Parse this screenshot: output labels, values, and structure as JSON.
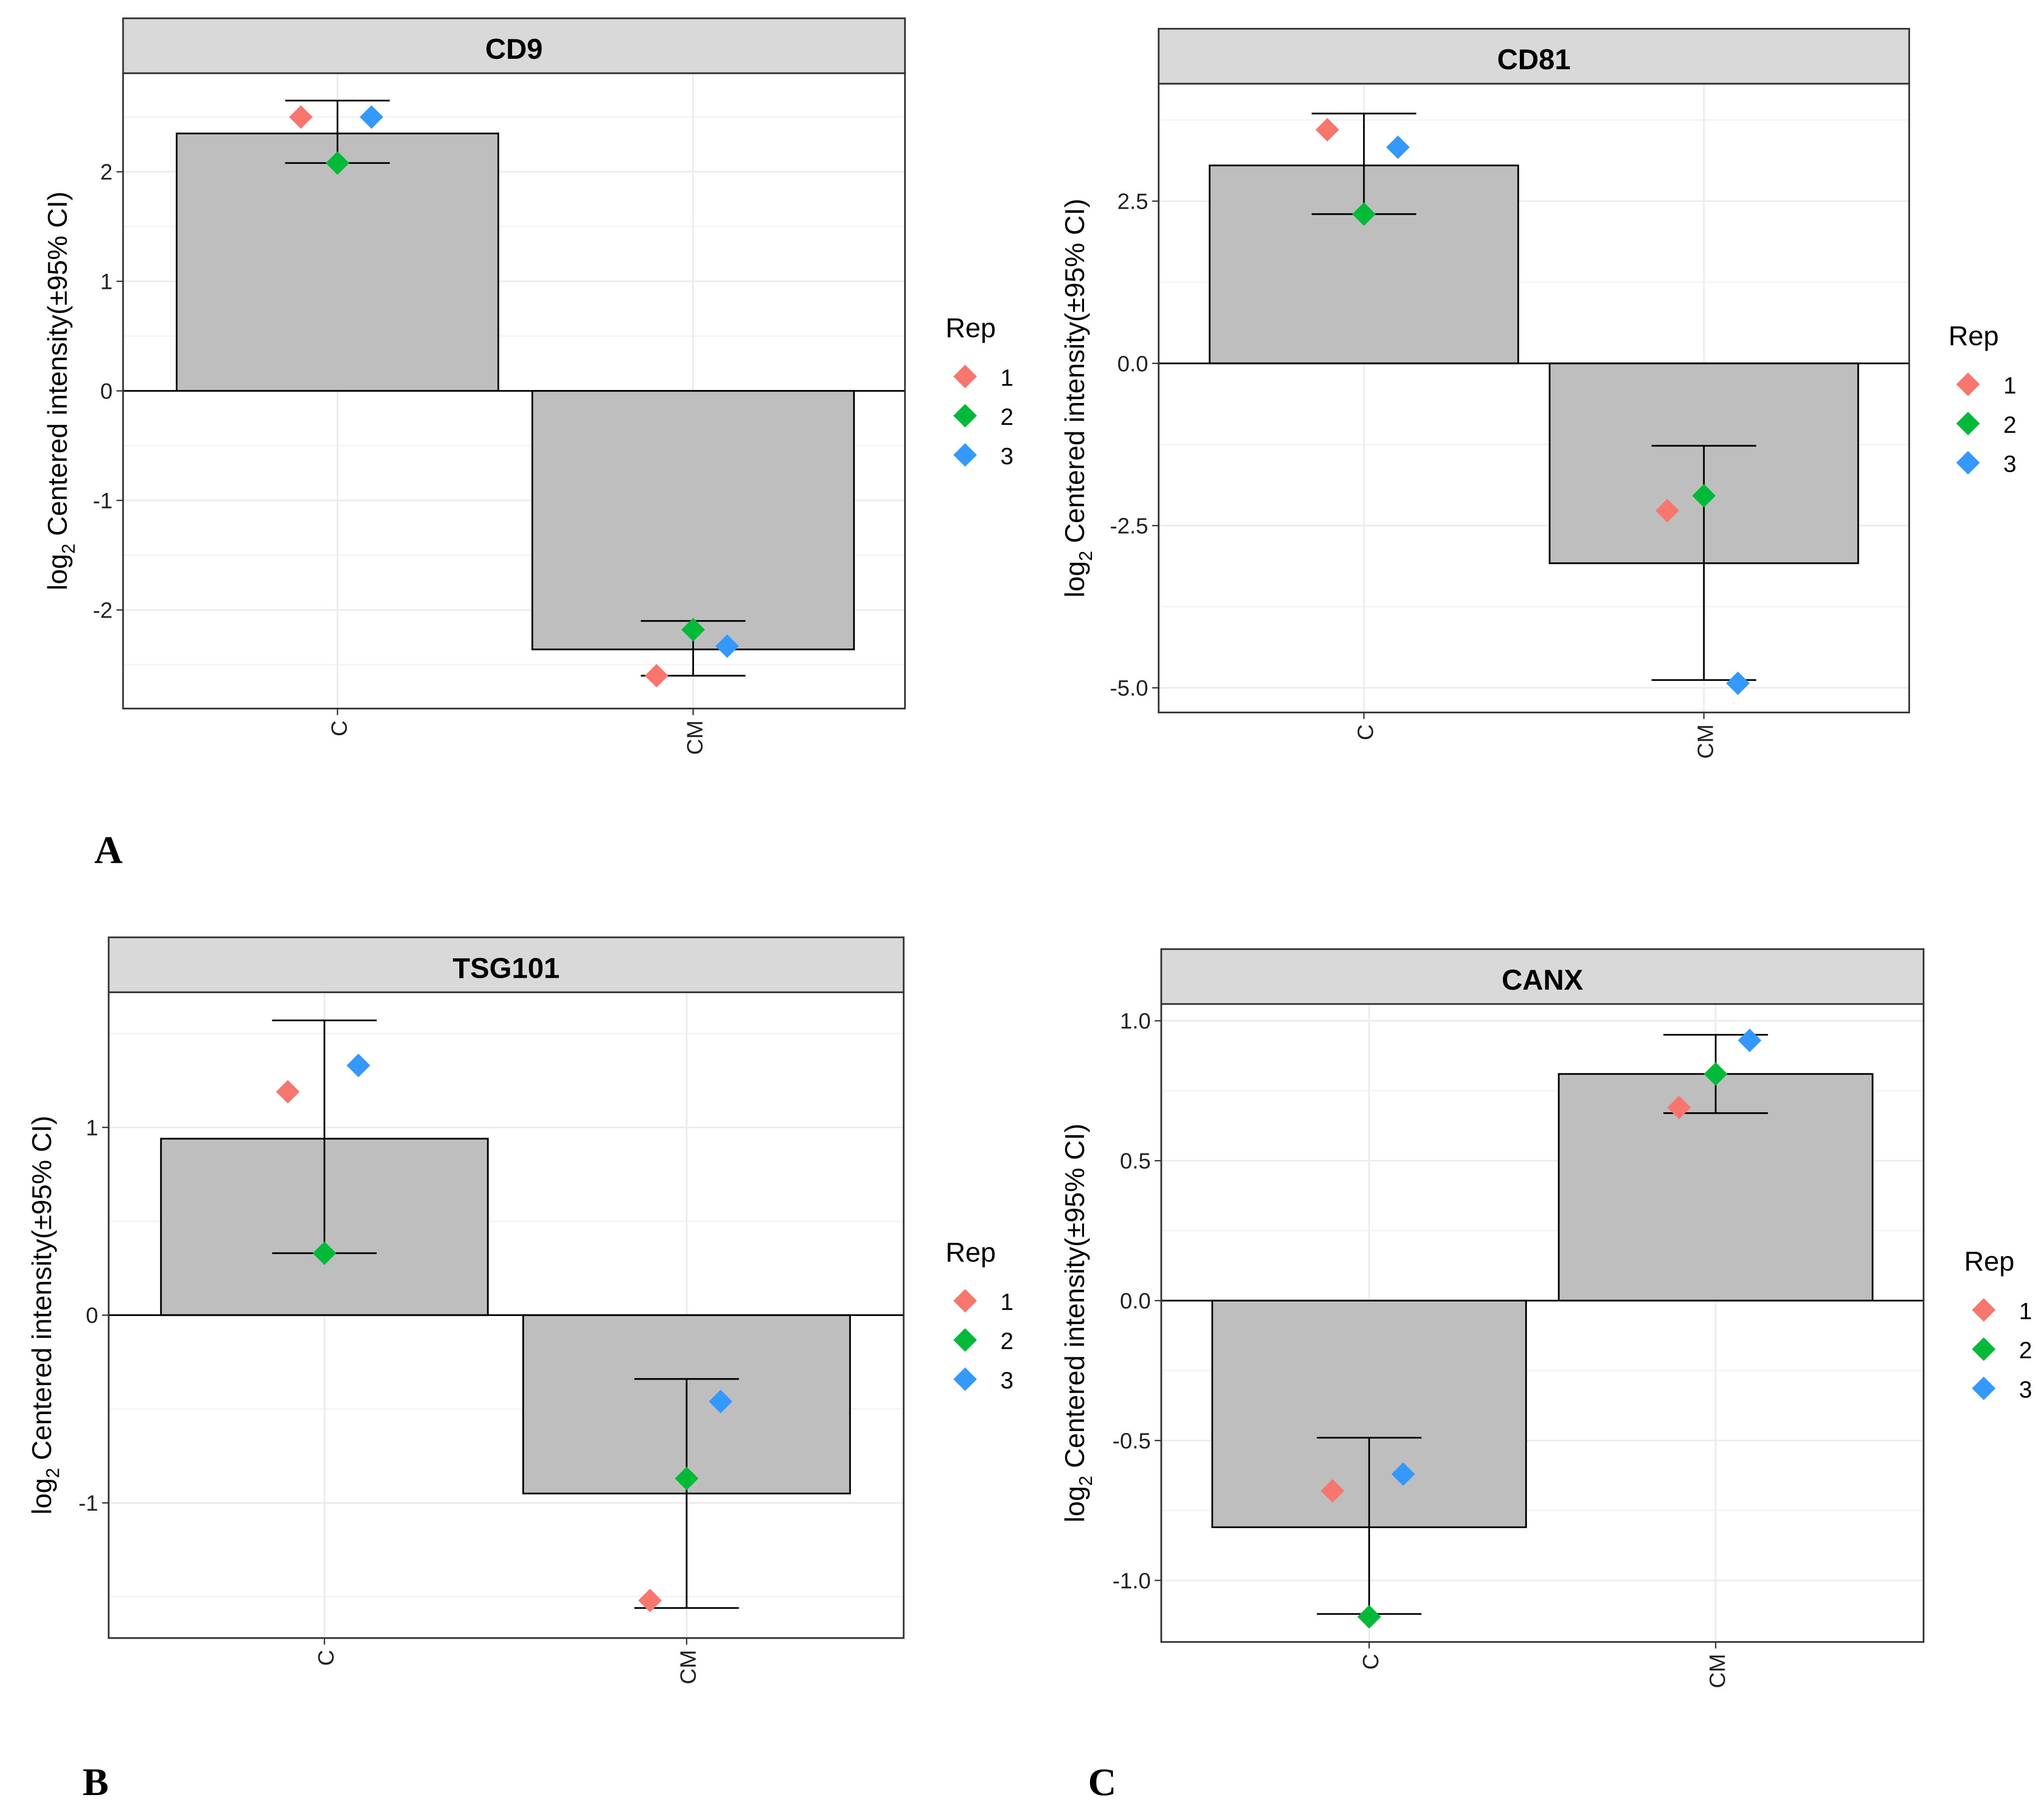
{
  "panel_labels": [
    "A",
    "B",
    "C"
  ],
  "chart_data": [
    {
      "type": "bar",
      "title": "CD9",
      "ylabel": "log2 Centered intensity(±95% CI)",
      "categories": [
        "C",
        "CM"
      ],
      "values": [
        2.35,
        -2.36
      ],
      "ylim": [
        -2.9,
        2.9
      ],
      "yticks": [
        -2,
        -1,
        0,
        1,
        2
      ],
      "ytick_labels": [
        "-2",
        "-1",
        "0",
        "1",
        "2"
      ],
      "errors": [
        [
          2.08,
          2.65
        ],
        [
          -2.6,
          -2.1
        ]
      ],
      "points": [
        {
          "rep": "1",
          "values": [
            2.5,
            -2.6
          ]
        },
        {
          "rep": "2",
          "values": [
            2.08,
            -2.18
          ]
        },
        {
          "rep": "3",
          "values": [
            2.5,
            -2.33
          ]
        }
      ],
      "legend": {
        "title": "Rep",
        "entries": [
          "1",
          "2",
          "3"
        ],
        "placement": "right"
      }
    },
    {
      "type": "bar",
      "title": "CD81",
      "ylabel": "log2 Centered intensity(±95% CI)",
      "categories": [
        "C",
        "CM"
      ],
      "values": [
        3.05,
        -3.08
      ],
      "ylim": [
        -5.38,
        4.31
      ],
      "yticks": [
        -5,
        -2.5,
        0,
        2.5
      ],
      "ytick_labels": [
        "-5.0",
        "-2.5",
        "0.0",
        "2.5"
      ],
      "errors": [
        [
          2.3,
          3.85
        ],
        [
          -4.88,
          -1.27
        ]
      ],
      "points": [
        {
          "rep": "1",
          "values": [
            3.6,
            -2.27
          ]
        },
        {
          "rep": "2",
          "values": [
            2.3,
            -2.04
          ]
        },
        {
          "rep": "3",
          "values": [
            3.33,
            -4.93
          ]
        }
      ],
      "legend": {
        "title": "Rep",
        "entries": [
          "1",
          "2",
          "3"
        ],
        "placement": "right"
      }
    },
    {
      "type": "bar",
      "title": "TSG101",
      "ylabel": "log2 Centered intensity(±95% CI)",
      "categories": [
        "C",
        "CM"
      ],
      "values": [
        0.94,
        -0.95
      ],
      "ylim": [
        -1.72,
        1.72
      ],
      "yticks": [
        -1,
        0,
        1
      ],
      "ytick_labels": [
        "-1",
        "0",
        "1"
      ],
      "errors": [
        [
          0.33,
          1.57
        ],
        [
          -1.56,
          -0.34
        ]
      ],
      "points": [
        {
          "rep": "1",
          "values": [
            1.19,
            -1.52
          ]
        },
        {
          "rep": "2",
          "values": [
            0.33,
            -0.87
          ]
        },
        {
          "rep": "3",
          "values": [
            1.33,
            -0.46
          ]
        }
      ],
      "legend": {
        "title": "Rep",
        "entries": [
          "1",
          "2",
          "3"
        ],
        "placement": "right"
      }
    },
    {
      "type": "bar",
      "title": "CANX",
      "ylabel": "log2 Centered intensity(±95% CI)",
      "categories": [
        "C",
        "CM"
      ],
      "values": [
        -0.81,
        0.81
      ],
      "ylim": [
        -1.22,
        1.06
      ],
      "yticks": [
        -1,
        -0.5,
        0,
        0.5,
        1
      ],
      "ytick_labels": [
        "-1.0",
        "-0.5",
        "0.0",
        "0.5",
        "1.0"
      ],
      "errors": [
        [
          -1.12,
          -0.49
        ],
        [
          0.67,
          0.95
        ]
      ],
      "points": [
        {
          "rep": "1",
          "values": [
            -0.68,
            0.69
          ]
        },
        {
          "rep": "2",
          "values": [
            -1.13,
            0.81
          ]
        },
        {
          "rep": "3",
          "values": [
            -0.62,
            0.93
          ]
        }
      ],
      "legend": {
        "title": "Rep",
        "entries": [
          "1",
          "2",
          "3"
        ],
        "placement": "right"
      }
    }
  ],
  "colors": {
    "rep1": "#F8766D",
    "rep2": "#00BA38",
    "rep3": "#3399FF",
    "bar": "#BEBEBE",
    "strip": "#D9D9D9"
  }
}
